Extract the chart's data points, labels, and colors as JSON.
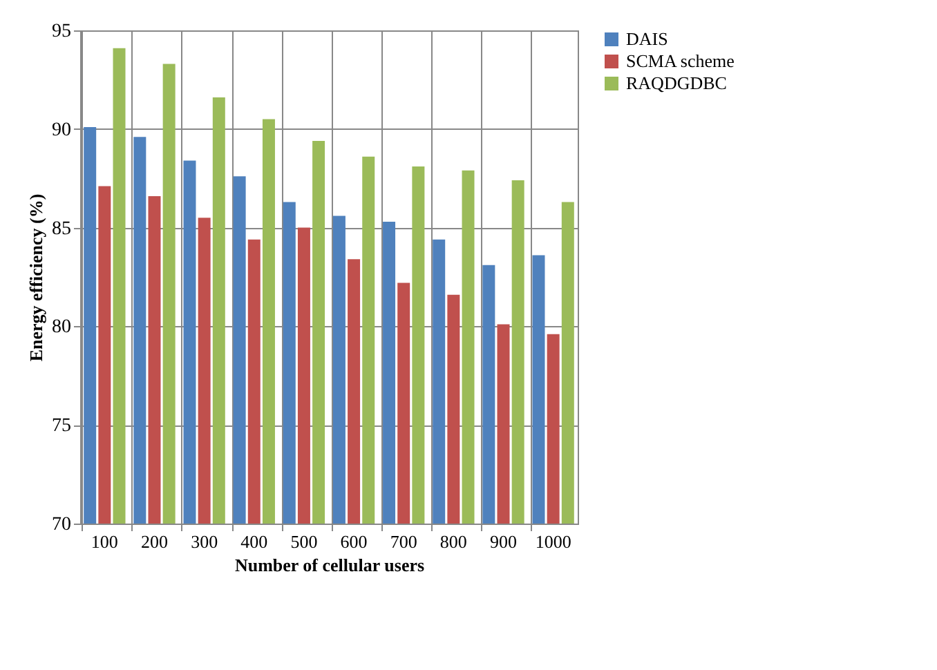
{
  "chart_data": {
    "type": "bar",
    "xlabel": "Number of cellular users",
    "ylabel": "Energy efficiency (%)",
    "categories": [
      "100",
      "200",
      "300",
      "400",
      "500",
      "600",
      "700",
      "800",
      "900",
      "1000"
    ],
    "series": [
      {
        "name": "DAIS",
        "color": "#4f81bd",
        "values": [
          90.1,
          89.6,
          88.4,
          87.6,
          86.3,
          85.6,
          85.3,
          84.4,
          83.1,
          83.6
        ]
      },
      {
        "name": "SCMA scheme",
        "color": "#c0504d",
        "values": [
          87.1,
          86.6,
          85.5,
          84.4,
          85.0,
          83.4,
          82.2,
          81.6,
          80.1,
          79.6
        ]
      },
      {
        "name": "RAQDGDBC",
        "color": "#9bbb59",
        "values": [
          94.1,
          93.3,
          91.6,
          90.5,
          89.4,
          88.6,
          88.1,
          87.9,
          87.4,
          86.3
        ]
      }
    ],
    "ylim": [
      70,
      95
    ],
    "yticks": [
      70,
      75,
      80,
      85,
      90,
      95
    ],
    "grid": true,
    "legend": "right"
  }
}
